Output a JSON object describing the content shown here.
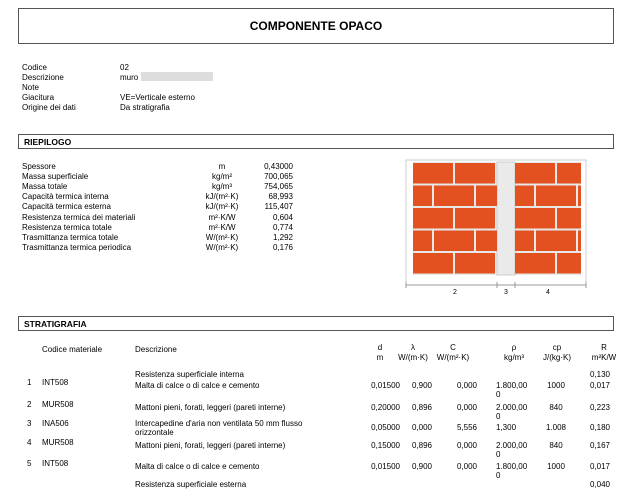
{
  "header": {
    "title": "COMPONENTE OPACO"
  },
  "info": [
    {
      "label": "Codice",
      "value": "02"
    },
    {
      "label": "Descrizione",
      "value": "muro"
    },
    {
      "label": "Note"
    },
    {
      "label": "Giacitura",
      "value": "VE=Verticale esterno"
    },
    {
      "label": "Origine dei dati",
      "value": "Da stratigrafia"
    }
  ],
  "riepilogo": {
    "title": "RIEPILOGO",
    "rows": [
      {
        "label": "Spessore",
        "unit": "m",
        "value": "0,43000"
      },
      {
        "label": "Massa superficiale",
        "unit": "kg/m²",
        "value": "700,065"
      },
      {
        "label": "Massa totale",
        "unit": "kg/m³",
        "value": "754,065"
      },
      {
        "label": "Capacità termica interna",
        "unit": "kJ/(m²·K)",
        "value": "68,993"
      },
      {
        "label": "Capacità termica esterna",
        "unit": "kJ/(m²·K)",
        "value": "115,407"
      },
      {
        "label": "Resistenza termica dei materiali",
        "unit": "m²·K/W",
        "value": "0,604"
      },
      {
        "label": "Resistenza termica totale",
        "unit": "m²·K/W",
        "value": "0,774"
      },
      {
        "label": "Trasmittanza termica totale",
        "unit": "W/(m²·K)",
        "value": "1,292"
      },
      {
        "label": "Trasmittanza termica periodica",
        "unit": "W/(m²·K)",
        "value": "0,176"
      }
    ]
  },
  "figure": {
    "labels": [
      "2",
      "3",
      "4"
    ]
  },
  "stratigrafia": {
    "title": "STRATIGRAFIA",
    "columns": {
      "code": "Codice materiale",
      "description": "Descrizione",
      "d": {
        "symbol": "d",
        "unit": "m"
      },
      "lambda": {
        "symbol": "λ",
        "unit": "W/(m·K)"
      },
      "C": {
        "symbol": "C",
        "unit": "W/(m²·K)"
      },
      "rho": {
        "symbol": "ρ",
        "unit": "kg/m³"
      },
      "cp": {
        "symbol": "cp",
        "unit": "J/(kg·K)"
      },
      "R": {
        "symbol": "R",
        "unit": "m²K/W"
      }
    },
    "rows": [
      {
        "description": "Resistenza superficiale interna",
        "R": "0,130"
      },
      {
        "n": "1",
        "code": "INT508",
        "description": "Malta di calce o di calce e cemento",
        "d": "0,01500",
        "lambda": "0,900",
        "C": "0,000",
        "rho": "1.800,000",
        "cp": "1000",
        "R": "0,017"
      },
      {
        "n": "2",
        "code": "MUR508",
        "description": "Mattoni pieni, forati, leggeri (pareti interne)",
        "d": "0,20000",
        "lambda": "0,896",
        "C": "0,000",
        "rho": "2.000,000",
        "cp": "840",
        "R": "0,223"
      },
      {
        "n": "3",
        "code": "INA506",
        "description": "Intercapedine d'aria non ventilata 50 mm flusso orizzontale",
        "d": "0,05000",
        "lambda": "0,000",
        "C": "5,556",
        "rho": "1,300",
        "cp": "1.008",
        "R": "0,180"
      },
      {
        "n": "4",
        "code": "MUR508",
        "description": "Mattoni pieni, forati, leggeri (pareti interne)",
        "d": "0,15000",
        "lambda": "0,896",
        "C": "0,000",
        "rho": "2.000,000",
        "cp": "840",
        "R": "0,167"
      },
      {
        "n": "5",
        "code": "INT508",
        "description": "Malta di calce o di calce e cemento",
        "d": "0,01500",
        "lambda": "0,900",
        "C": "0,000",
        "rho": "1.800,000",
        "cp": "1000",
        "R": "0,017"
      },
      {
        "description": "Resistenza superficiale esterna",
        "R": "0,040"
      }
    ]
  }
}
